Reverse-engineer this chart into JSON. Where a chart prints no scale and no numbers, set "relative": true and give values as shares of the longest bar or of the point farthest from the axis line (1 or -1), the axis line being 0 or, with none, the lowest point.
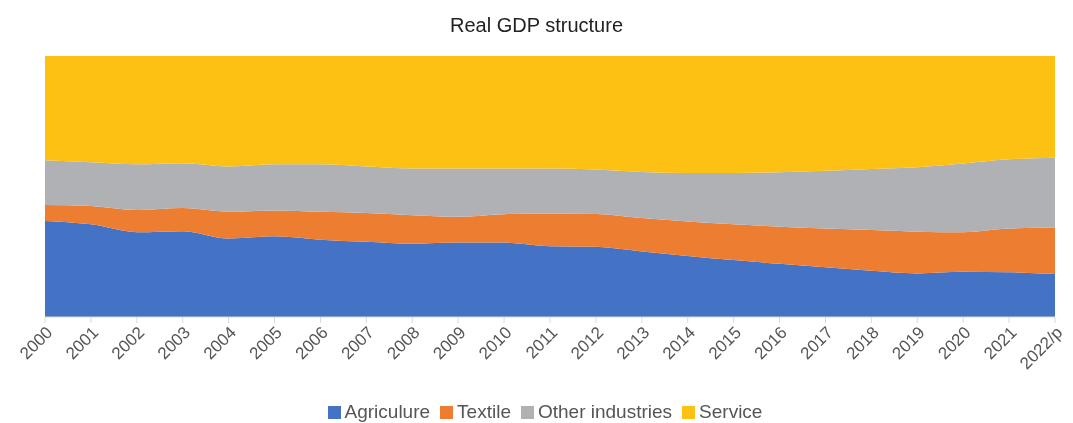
{
  "chart_data": {
    "type": "area",
    "title": "Real GDP structure",
    "stacked": true,
    "relative": true,
    "legend": "bottom",
    "categories": [
      "2000",
      "2001",
      "2002",
      "2003",
      "2004",
      "2005",
      "2006",
      "2007",
      "2008",
      "2009",
      "2010",
      "2011",
      "2012",
      "2013",
      "2014",
      "2015",
      "2016",
      "2017",
      "2018",
      "2019",
      "2020",
      "2021",
      "2022/p"
    ],
    "series": [
      {
        "name": "Agriculure",
        "color": "#4472c4",
        "values": [
          0.368,
          0.355,
          0.325,
          0.329,
          0.301,
          0.309,
          0.296,
          0.288,
          0.281,
          0.285,
          0.285,
          0.271,
          0.269,
          0.251,
          0.234,
          0.218,
          0.204,
          0.191,
          0.177,
          0.167,
          0.173,
          0.171,
          0.165
        ]
      },
      {
        "name": "Textile",
        "color": "#ed7d31",
        "values": [
          0.061,
          0.07,
          0.085,
          0.089,
          0.103,
          0.099,
          0.107,
          0.11,
          0.109,
          0.099,
          0.109,
          0.125,
          0.126,
          0.128,
          0.132,
          0.137,
          0.142,
          0.148,
          0.156,
          0.16,
          0.152,
          0.168,
          0.178
        ]
      },
      {
        "name": "Other industries",
        "color": "#b0b1b5",
        "values": [
          0.172,
          0.168,
          0.175,
          0.171,
          0.173,
          0.177,
          0.182,
          0.179,
          0.179,
          0.185,
          0.175,
          0.173,
          0.17,
          0.177,
          0.186,
          0.197,
          0.209,
          0.221,
          0.234,
          0.247,
          0.263,
          0.265,
          0.267
        ]
      },
      {
        "name": "Service",
        "color": "#fcc112",
        "values": [
          0.399,
          0.407,
          0.415,
          0.411,
          0.423,
          0.415,
          0.415,
          0.423,
          0.431,
          0.431,
          0.431,
          0.431,
          0.435,
          0.444,
          0.448,
          0.448,
          0.445,
          0.44,
          0.433,
          0.426,
          0.412,
          0.396,
          0.39
        ]
      }
    ]
  }
}
